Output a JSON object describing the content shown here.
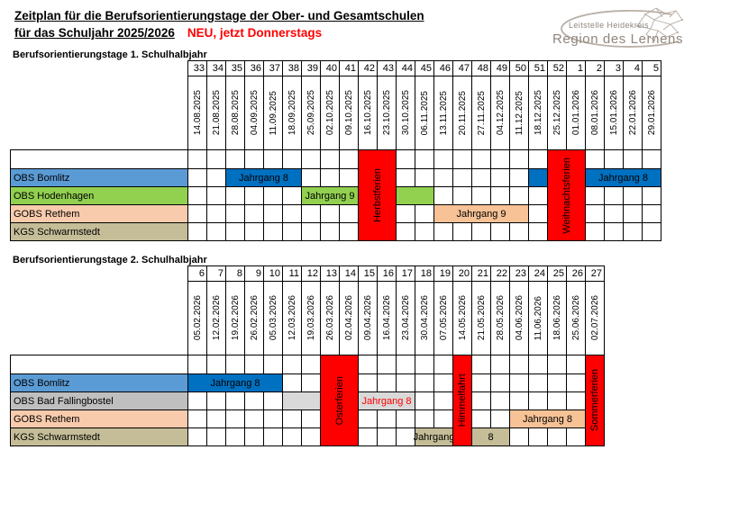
{
  "title": {
    "line1": "Zeitplan für die Berufsorientierungstage der Ober- und Gesamtschulen",
    "line2": "für das Schuljahr 2025/2026",
    "highlight": "NEU, jetzt Donnerstags"
  },
  "logo": {
    "small": "Leitstelle Heidekreis",
    "large": "Region des Lernens"
  },
  "colors": {
    "holiday_red": "#FF0000",
    "accent_red_text": "#FF0000",
    "bar_blue": "#0070C0",
    "label_blue": "#5B9BD5",
    "green": "#92D050",
    "peach_label": "#F8CBAD",
    "peach_bar": "#F6C296",
    "tan": "#C4BD97",
    "gray_label": "#BFBFBF",
    "gray_bar": "#D9D9D9"
  },
  "tables": [
    {
      "caption": "Berufsorientierungstage 1. Schulhalbjahr",
      "weeks": [
        "33",
        "34",
        "35",
        "36",
        "37",
        "38",
        "39",
        "40",
        "41",
        "42",
        "43",
        "44",
        "45",
        "46",
        "47",
        "48",
        "49",
        "50",
        "51",
        "52",
        "1",
        "2",
        "3",
        "4",
        "5"
      ],
      "dates": [
        "14.08.2025",
        "21.08.2025",
        "28.08.2025",
        "04.09.2025",
        "11.09.2025",
        "18.09.2025",
        "25.09.2025",
        "02.10.2025",
        "09.10.2025",
        "16.10.2025",
        "23.10.2025",
        "30.10.2025",
        "06.11.2025",
        "13.11.2025",
        "20.11.2025",
        "27.11.2025",
        "04.12.2025",
        "11.12.2025",
        "18.12.2025",
        "25.12.2025",
        "01.01.2026",
        "08.01.2026",
        "15.01.2026",
        "22.01.2026",
        "29.01.2026"
      ],
      "rows": [
        {
          "label": "OBS Bomlitz",
          "color": "#5B9BD5",
          "bars": [
            {
              "col": 2,
              "span": 4,
              "label": "Jahrgang 8",
              "color": "#0070C0"
            },
            {
              "col": 18,
              "span": 1,
              "label": "",
              "color": "#0070C0"
            },
            {
              "col": 21,
              "span": 4,
              "label": "Jahrgang 8",
              "color": "#0070C0"
            }
          ]
        },
        {
          "label": "OBS Hodenhagen",
          "color": "#92D050",
          "bars": [
            {
              "col": 6,
              "span": 3,
              "label": "Jahrgang 9",
              "color": "#92D050"
            },
            {
              "col": 11,
              "span": 2,
              "label": "",
              "color": "#92D050"
            }
          ]
        },
        {
          "label": "GOBS Rethem",
          "color": "#F8CBAD",
          "bars": [
            {
              "col": 13,
              "span": 5,
              "label": "Jahrgang 9",
              "color": "#F6C296"
            }
          ]
        },
        {
          "label": "KGS Schwarmstedt",
          "color": "#C4BD97",
          "bars": []
        }
      ],
      "holidays": [
        {
          "col": 9,
          "span": 2,
          "label": "Herbstferien"
        },
        {
          "col": 19,
          "span": 2,
          "label": "Weihnachtsferien"
        }
      ]
    },
    {
      "caption": "Berufsorientierungstage 2. Schulhalbjahr",
      "weeks": [
        "6",
        "7",
        "8",
        "9",
        "10",
        "11",
        "12",
        "13",
        "14",
        "15",
        "16",
        "17",
        "18",
        "19",
        "20",
        "21",
        "22",
        "23",
        "24",
        "25",
        "26",
        "27"
      ],
      "dates": [
        "05.02.2026",
        "12.02.2026",
        "19.02.2026",
        "26.02.2026",
        "05.03.2026",
        "12.03.2026",
        "19.03.2026",
        "26.03.2026",
        "02.04.2026",
        "09.04.2026",
        "16.04.2026",
        "23.04.2026",
        "30.04.2026",
        "07.05.2026",
        "14.05.2026",
        "21.05.2026",
        "28.05.2026",
        "04.06.2026",
        "11.06.2026",
        "18.06.2026",
        "25.06.2026",
        "02.07.2026"
      ],
      "rows": [
        {
          "label": "OBS Bomlitz",
          "color": "#5B9BD5",
          "bars": [
            {
              "col": 0,
              "span": 5,
              "label": "Jahrgang 8",
              "color": "#0070C0"
            }
          ]
        },
        {
          "label": "OBS Bad Fallingbostel",
          "color": "#BFBFBF",
          "bars": [
            {
              "col": 5,
              "span": 2,
              "label": "",
              "color": "#D9D9D9"
            },
            {
              "col": 9,
              "span": 3,
              "label": "Jahrgang 8",
              "color": "#D9D9D9",
              "text_color": "#FF0000"
            }
          ]
        },
        {
          "label": "GOBS Rethem",
          "color": "#F8CBAD",
          "bars": [
            {
              "col": 17,
              "span": 4,
              "label": "Jahrgang 8",
              "color": "#F6C296"
            }
          ]
        },
        {
          "label": "KGS Schwarmstedt",
          "color": "#C4BD97",
          "bars": [
            {
              "col": 12,
              "span": 2,
              "label": "Jahrgang",
              "color": "#C4BD97"
            },
            {
              "col": 15,
              "span": 2,
              "label": "8",
              "color": "#C4BD97"
            }
          ]
        }
      ],
      "holidays": [
        {
          "col": 7,
          "span": 2,
          "label": "Osterferien"
        },
        {
          "col": 14,
          "span": 1,
          "label": "Himmelfahrt"
        },
        {
          "col": 21,
          "span": 1,
          "label": "Sommerferien"
        }
      ]
    }
  ]
}
